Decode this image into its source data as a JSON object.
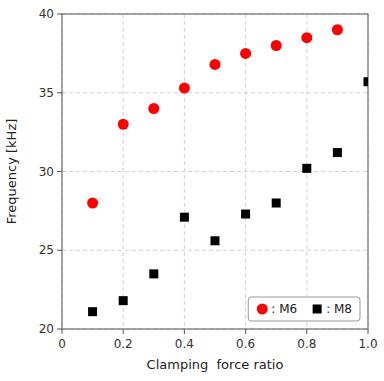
{
  "chart_data": {
    "type": "scatter",
    "xlabel": "Clamping  force ratio",
    "ylabel": "Frequency [kHz]",
    "series": [
      {
        "name": ": M6",
        "color": "#ff0000",
        "marker": "circle",
        "x": [
          0.1,
          0.2,
          0.3,
          0.4,
          0.5,
          0.6,
          0.7,
          0.8,
          0.9
        ],
        "values": [
          28.0,
          33.0,
          34.0,
          35.3,
          36.8,
          37.5,
          38.0,
          38.5,
          39.0
        ]
      },
      {
        "name": ": M8",
        "color": "#000000",
        "marker": "square",
        "x": [
          0.1,
          0.2,
          0.3,
          0.4,
          0.5,
          0.6,
          0.7,
          0.8,
          0.9,
          1.0
        ],
        "values": [
          21.1,
          21.8,
          23.5,
          27.1,
          25.6,
          27.3,
          28.0,
          30.2,
          31.2,
          35.7
        ]
      }
    ],
    "xlim": [
      0,
      1.0
    ],
    "ylim": [
      20,
      40
    ],
    "xticks": [
      0,
      0.2,
      0.4,
      0.6,
      0.8,
      {
        "value": 1.0,
        "label": "1.0"
      }
    ],
    "yticks": [
      20,
      25,
      30,
      35,
      40
    ],
    "grid": true,
    "legend": "lower right"
  }
}
